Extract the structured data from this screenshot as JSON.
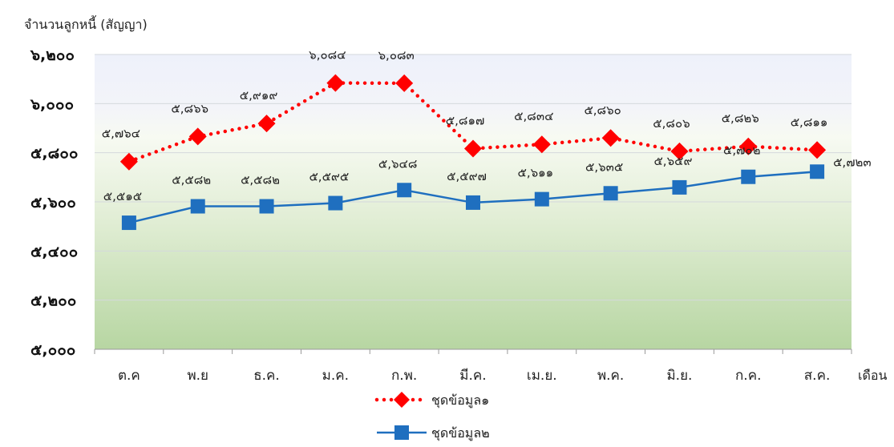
{
  "chart_data": {
    "type": "line",
    "ylabel": "จำนวนลูกหนี้ (สัญญา)",
    "xlabel": "เดือน",
    "ylim": [
      5000,
      6200
    ],
    "yticks": [
      5000,
      5200,
      5400,
      5600,
      5800,
      6000,
      6200
    ],
    "ytick_labels": [
      "๕,๐๐๐",
      "๕,๒๐๐",
      "๕,๔๐๐",
      "๕,๖๐๐",
      "๕,๘๐๐",
      "๖,๐๐๐",
      "๖,๒๐๐"
    ],
    "categories": [
      "ต.ค",
      "พ.ย",
      "ธ.ค.",
      "ม.ค.",
      "ก.พ.",
      "มี.ค.",
      "เม.ย.",
      "พ.ค.",
      "มิ.ย.",
      "ก.ค.",
      "ส.ค."
    ],
    "grid": true,
    "legend_position": "bottom",
    "series": [
      {
        "name": "ชุดข้อมูล๑",
        "color": "#ff0000",
        "marker": "diamond",
        "line_style": "dotted",
        "values": [
          5764,
          5866,
          5919,
          6084,
          6083,
          5817,
          5834,
          5860,
          5806,
          5826,
          5811
        ],
        "labels": [
          "๕,๗๖๔",
          "๕,๘๖๖",
          "๕,๙๑๙",
          "๖,๐๘๔",
          "๖,๐๘๓",
          "๕,๘๑๗",
          "๕,๘๓๔",
          "๕,๘๖๐",
          "๕,๘๐๖",
          "๕,๘๒๖",
          "๕,๘๑๑"
        ]
      },
      {
        "name": "ชุดข้อมูล๒",
        "color": "#1f6fbf",
        "marker": "square",
        "line_style": "solid",
        "values": [
          5515,
          5582,
          5582,
          5595,
          5648,
          5597,
          5611,
          5635,
          5659,
          5702,
          5723
        ],
        "labels": [
          "๕,๕๑๕",
          "๕,๕๘๒",
          "๕,๕๘๒",
          "๕,๕๙๕",
          "๕,๖๔๘",
          "๕,๕๙๗",
          "๕,๖๑๑",
          "๕,๖๓๕",
          "๕,๖๕๙",
          "๕,๗๐๒",
          "๕,๗๒๓"
        ]
      }
    ]
  }
}
